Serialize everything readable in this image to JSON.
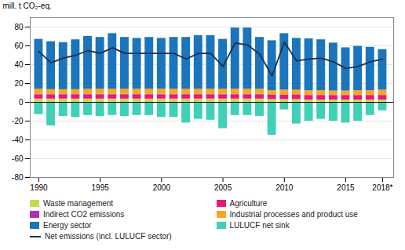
{
  "chart_data": {
    "type": "bar",
    "stacked": true,
    "ylabel": "mill. t CO₂-eq.",
    "x": [
      1990,
      1991,
      1992,
      1993,
      1994,
      1995,
      1996,
      1997,
      1998,
      1999,
      2000,
      2001,
      2002,
      2003,
      2004,
      2005,
      2006,
      2007,
      2008,
      2009,
      2010,
      2011,
      2012,
      2013,
      2014,
      2015,
      2016,
      2017,
      2018
    ],
    "series": [
      {
        "name": "Waste management",
        "color": "#c8d94e",
        "values": [
          3.5,
          3.5,
          3.5,
          3.5,
          3.5,
          3.5,
          3.5,
          3.5,
          3.5,
          3.5,
          3.5,
          3.5,
          3.5,
          3.5,
          3.5,
          3.5,
          3.5,
          3.5,
          3.5,
          3.0,
          3.0,
          3.0,
          2.5,
          2.5,
          2.5,
          2.5,
          2.5,
          2.5,
          2.5
        ]
      },
      {
        "name": "Agriculture",
        "color": "#e8197d",
        "values": [
          4.5,
          4.5,
          4.5,
          4.5,
          4.5,
          4.5,
          4.5,
          4.5,
          4.5,
          4.5,
          4.5,
          4.5,
          4.5,
          4.5,
          4.5,
          4.5,
          4.5,
          4.5,
          4.5,
          4.5,
          4.5,
          4.5,
          4.5,
          4.5,
          4.5,
          4.5,
          4.5,
          4.5,
          4.5
        ]
      },
      {
        "name": "Indirect CO2 emissions",
        "color": "#b030b0",
        "values": [
          0.5,
          0.5,
          0.5,
          0.5,
          0.5,
          0.5,
          0.5,
          0.5,
          0.5,
          0.5,
          0.5,
          0.5,
          0.5,
          0.5,
          0.5,
          0.5,
          0.5,
          0.5,
          0.5,
          0.5,
          0.5,
          0.5,
          0.5,
          0.5,
          0.5,
          0.5,
          0.5,
          0.5,
          0.5
        ]
      },
      {
        "name": "Industrial processes and product use",
        "color": "#f5a623",
        "values": [
          5.5,
          5.0,
          5.0,
          5.0,
          5.5,
          5.5,
          5.5,
          5.5,
          5.5,
          5.5,
          5.5,
          5.5,
          5.5,
          5.5,
          5.5,
          5.5,
          5.5,
          5.5,
          5.5,
          4.5,
          5.0,
          5.0,
          5.0,
          5.0,
          4.5,
          4.5,
          5.0,
          5.0,
          5.5
        ]
      },
      {
        "name": "Energy sector",
        "color": "#1a75bc",
        "values": [
          53,
          51,
          50,
          53,
          56,
          55,
          59,
          55,
          54,
          55,
          54,
          55,
          55,
          57,
          57,
          53,
          65,
          65,
          55,
          53,
          60,
          55,
          55,
          54,
          51,
          46,
          47,
          46,
          43
        ]
      },
      {
        "name": "LULUCF net sink",
        "color": "#40d0b8",
        "values": [
          -13,
          -25,
          -15,
          -16,
          -14,
          -15,
          -14,
          -15,
          -14,
          -14,
          -16,
          -16,
          -22,
          -18,
          -19,
          -28,
          -14,
          -14,
          -15,
          -35,
          -8,
          -23,
          -20,
          -18,
          -20,
          -22,
          -20,
          -14,
          -9
        ]
      },
      {
        "name": "Net emissions (incl. LULUCF sector)",
        "type": "line",
        "color": "#1a2f4a",
        "values": [
          54,
          42,
          47,
          50,
          55,
          52,
          58,
          52,
          52,
          52,
          52,
          52,
          46,
          52,
          52,
          38,
          63,
          61,
          51,
          28,
          64,
          44,
          46,
          47,
          43,
          36,
          38,
          43,
          46
        ]
      }
    ],
    "xlim": [
      1989.3,
      2018.9
    ],
    "xticks": [
      1990,
      1995,
      2000,
      2005,
      2010,
      2015,
      {
        "value": 2018,
        "label": "2018*"
      }
    ],
    "ylim": [
      -80,
      90
    ],
    "yticks": [
      -80,
      -60,
      -40,
      -20,
      0,
      20,
      40,
      60,
      80
    ],
    "grid": true,
    "legend": "bottom"
  }
}
